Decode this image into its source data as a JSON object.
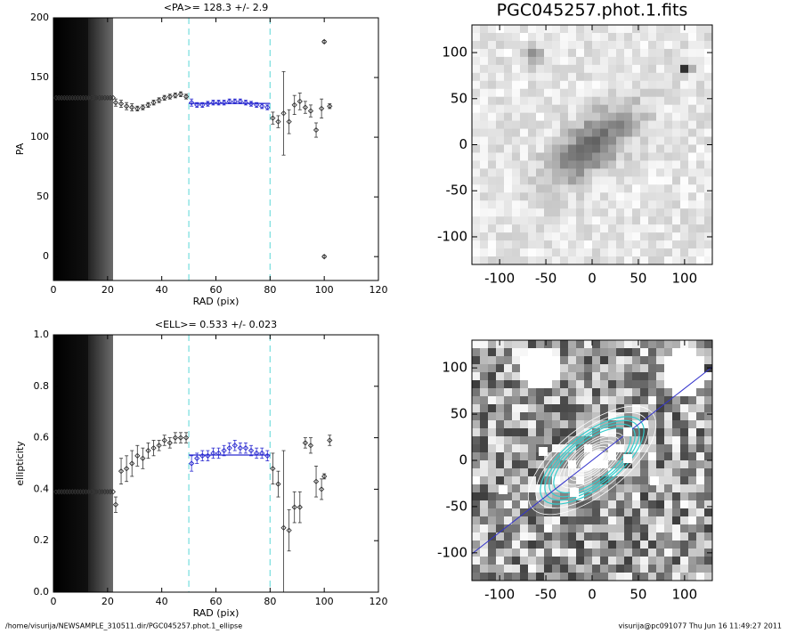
{
  "chart_data": [
    {
      "type": "scatter",
      "title": "<PA>= 128.3 +/-   2.9",
      "xlabel": "RAD (pix)",
      "ylabel": "PA",
      "x": [
        1,
        2,
        3,
        4,
        5,
        6,
        7,
        8,
        9,
        10,
        11,
        12,
        13,
        14,
        15,
        16,
        17,
        18,
        19,
        20,
        21,
        22,
        23,
        25,
        27,
        29,
        31,
        33,
        35,
        37,
        39,
        41,
        43,
        45,
        47,
        49,
        51,
        53,
        55,
        57,
        59,
        61,
        63,
        65,
        67,
        69,
        71,
        73,
        75,
        77,
        79,
        81,
        83,
        85,
        87,
        89,
        91,
        93,
        95,
        97,
        99,
        100,
        100,
        102
      ],
      "values": [
        133,
        133,
        133,
        133,
        133,
        133,
        133,
        133,
        133,
        133,
        133,
        133,
        133,
        133,
        133,
        133,
        133,
        133,
        133,
        133,
        133,
        133,
        129,
        128,
        126,
        125,
        124,
        125,
        127,
        129,
        131,
        133,
        134,
        135,
        136,
        134,
        129,
        127,
        127,
        128,
        129,
        129,
        129,
        130,
        130,
        130,
        129,
        128,
        127,
        126,
        125,
        116,
        113,
        120,
        113,
        127,
        130,
        125,
        122,
        106,
        124,
        180,
        0,
        126
      ],
      "errors": [
        0,
        0,
        0,
        0,
        0,
        0,
        0,
        0,
        0,
        0,
        0,
        0,
        0,
        0,
        0,
        0,
        0,
        0,
        0,
        0,
        0,
        0,
        3,
        3,
        3,
        3,
        2,
        2,
        2,
        2,
        2,
        2,
        2,
        2,
        2,
        2,
        3,
        2,
        2,
        2,
        2,
        2,
        2,
        2,
        2,
        2,
        2,
        2,
        2,
        2,
        2,
        5,
        5,
        35,
        10,
        8,
        7,
        5,
        5,
        6,
        8,
        1,
        1,
        2
      ],
      "xlim": [
        0,
        120
      ],
      "ylim": [
        -20,
        200
      ],
      "xticks": [
        0,
        20,
        40,
        60,
        80,
        100,
        120
      ],
      "yticks": [
        0,
        50,
        100,
        150,
        200
      ],
      "color": "#333333",
      "vlines": [
        50,
        80
      ],
      "vline_color": "#7fe0e0",
      "fit": {
        "value": 128.3,
        "x": [
          50,
          80
        ],
        "color": "#2a2ad0"
      }
    },
    {
      "type": "scatter",
      "title": "<ELL>= 0.533 +/-  0.023",
      "xlabel": "RAD (pix)",
      "ylabel": "ellipticity",
      "x": [
        1,
        2,
        3,
        4,
        5,
        6,
        7,
        8,
        9,
        10,
        11,
        12,
        13,
        14,
        15,
        16,
        17,
        18,
        19,
        20,
        21,
        22,
        23,
        25,
        27,
        29,
        31,
        33,
        35,
        37,
        39,
        41,
        43,
        45,
        47,
        49,
        51,
        53,
        55,
        57,
        59,
        61,
        63,
        65,
        67,
        69,
        71,
        73,
        75,
        77,
        79,
        81,
        83,
        85,
        87,
        89,
        91,
        93,
        95,
        97,
        99,
        100,
        102
      ],
      "values": [
        0.39,
        0.39,
        0.39,
        0.39,
        0.39,
        0.39,
        0.39,
        0.39,
        0.39,
        0.39,
        0.39,
        0.39,
        0.39,
        0.39,
        0.39,
        0.39,
        0.39,
        0.39,
        0.39,
        0.39,
        0.39,
        0.39,
        0.34,
        0.47,
        0.48,
        0.5,
        0.53,
        0.52,
        0.55,
        0.56,
        0.57,
        0.59,
        0.58,
        0.6,
        0.6,
        0.6,
        0.5,
        0.52,
        0.53,
        0.53,
        0.54,
        0.54,
        0.55,
        0.56,
        0.57,
        0.56,
        0.56,
        0.55,
        0.54,
        0.54,
        0.53,
        0.48,
        0.42,
        0.25,
        0.24,
        0.33,
        0.33,
        0.58,
        0.57,
        0.43,
        0.4,
        0.45,
        0.59
      ],
      "errors": [
        0,
        0,
        0,
        0,
        0,
        0,
        0,
        0,
        0,
        0,
        0,
        0,
        0,
        0,
        0,
        0,
        0,
        0,
        0,
        0,
        0,
        0,
        0.03,
        0.05,
        0.05,
        0.05,
        0.04,
        0.04,
        0.03,
        0.03,
        0.02,
        0.02,
        0.02,
        0.02,
        0.02,
        0.02,
        0.03,
        0.02,
        0.02,
        0.02,
        0.02,
        0.02,
        0.02,
        0.02,
        0.02,
        0.02,
        0.02,
        0.02,
        0.02,
        0.02,
        0.02,
        0.06,
        0.05,
        0.3,
        0.08,
        0.06,
        0.06,
        0.02,
        0.03,
        0.06,
        0.04,
        0.01,
        0.02
      ],
      "xlim": [
        0,
        120
      ],
      "ylim": [
        0,
        1
      ],
      "xticks": [
        0,
        20,
        40,
        60,
        80,
        100,
        120
      ],
      "yticks": [
        {
          "value": 0,
          "label": "0.0"
        },
        0.2,
        0.4,
        0.6,
        0.8,
        {
          "value": 1,
          "label": "1.0"
        }
      ],
      "color": "#333333",
      "vlines": [
        50,
        80
      ],
      "vline_color": "#7fe0e0",
      "fit": {
        "value": 0.533,
        "x": [
          50,
          80
        ],
        "color": "#2a2ad0"
      }
    },
    {
      "type": "image",
      "title": "PGC045257.phot.1.fits",
      "xlim": [
        -130,
        130
      ],
      "ylim": [
        -130,
        130
      ],
      "xticks": [
        -100,
        -50,
        0,
        50,
        100
      ],
      "yticks": [
        -100,
        -50,
        0,
        50,
        100
      ]
    },
    {
      "type": "image",
      "xlim": [
        -130,
        130
      ],
      "ylim": [
        -130,
        130
      ],
      "xticks": [
        -100,
        -50,
        0,
        50,
        100
      ],
      "yticks": [
        -100,
        -50,
        0,
        50,
        100
      ]
    }
  ],
  "footer": {
    "left": "/home/visurija/NEWSAMPLE_310511.dir/PGC045257.phot.1_ellipse",
    "right": "visurija@pc091077  Thu Jun 16 11:49:27 2011"
  }
}
